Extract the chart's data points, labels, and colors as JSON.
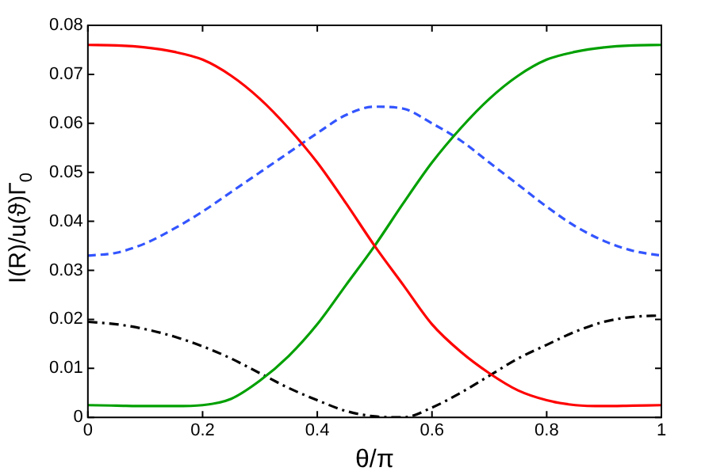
{
  "chart_data": {
    "type": "line",
    "xlabel": "θ/π",
    "ylabel": "I(R)/u(ϑ)Γ$_{0}$",
    "xlim": [
      0,
      1
    ],
    "xticks": [
      0,
      0.2,
      0.4,
      0.6,
      0.8,
      1
    ],
    "ylim": [
      0,
      0.08
    ],
    "yticks": [
      0,
      0.01,
      0.02,
      0.03,
      0.04,
      0.05,
      0.06,
      0.07,
      0.08
    ],
    "grid": false,
    "legend": false,
    "marker": "none",
    "x": [
      0,
      0.05,
      0.1,
      0.15,
      0.2,
      0.25,
      0.3,
      0.35,
      0.4,
      0.45,
      0.5,
      0.55,
      0.6,
      0.65,
      0.7,
      0.75,
      0.8,
      0.85,
      0.9,
      0.95,
      1
    ],
    "series": [
      {
        "color": "#ff0000",
        "line_style": "solid",
        "values": [
          0.076,
          0.0759,
          0.0755,
          0.0746,
          0.073,
          0.0697,
          0.065,
          0.059,
          0.052,
          0.0437,
          0.035,
          0.027,
          0.019,
          0.0134,
          0.009,
          0.0055,
          0.0035,
          0.0025,
          0.0023,
          0.0024,
          0.0025
        ]
      },
      {
        "color": "#00a000",
        "line_style": "solid",
        "values": [
          0.0025,
          0.0024,
          0.0023,
          0.0023,
          0.0025,
          0.0038,
          0.0075,
          0.0125,
          0.019,
          0.027,
          0.035,
          0.0437,
          0.052,
          0.059,
          0.065,
          0.0697,
          0.073,
          0.0746,
          0.0755,
          0.0759,
          0.076
        ]
      },
      {
        "color": "#3355ff",
        "line_style": "dashed",
        "values": [
          0.033,
          0.0336,
          0.0355,
          0.0385,
          0.042,
          0.046,
          0.05,
          0.054,
          0.058,
          0.0617,
          0.0634,
          0.063,
          0.06,
          0.0565,
          0.052,
          0.0475,
          0.043,
          0.039,
          0.036,
          0.034,
          0.033
        ]
      },
      {
        "color": "#000000",
        "line_style": "dashdot",
        "values": [
          0.0195,
          0.019,
          0.018,
          0.0165,
          0.0145,
          0.012,
          0.009,
          0.006,
          0.0035,
          0.0013,
          0.0002,
          0,
          0.002,
          0.005,
          0.0085,
          0.012,
          0.0148,
          0.0175,
          0.0195,
          0.0205,
          0.0208
        ]
      }
    ]
  }
}
